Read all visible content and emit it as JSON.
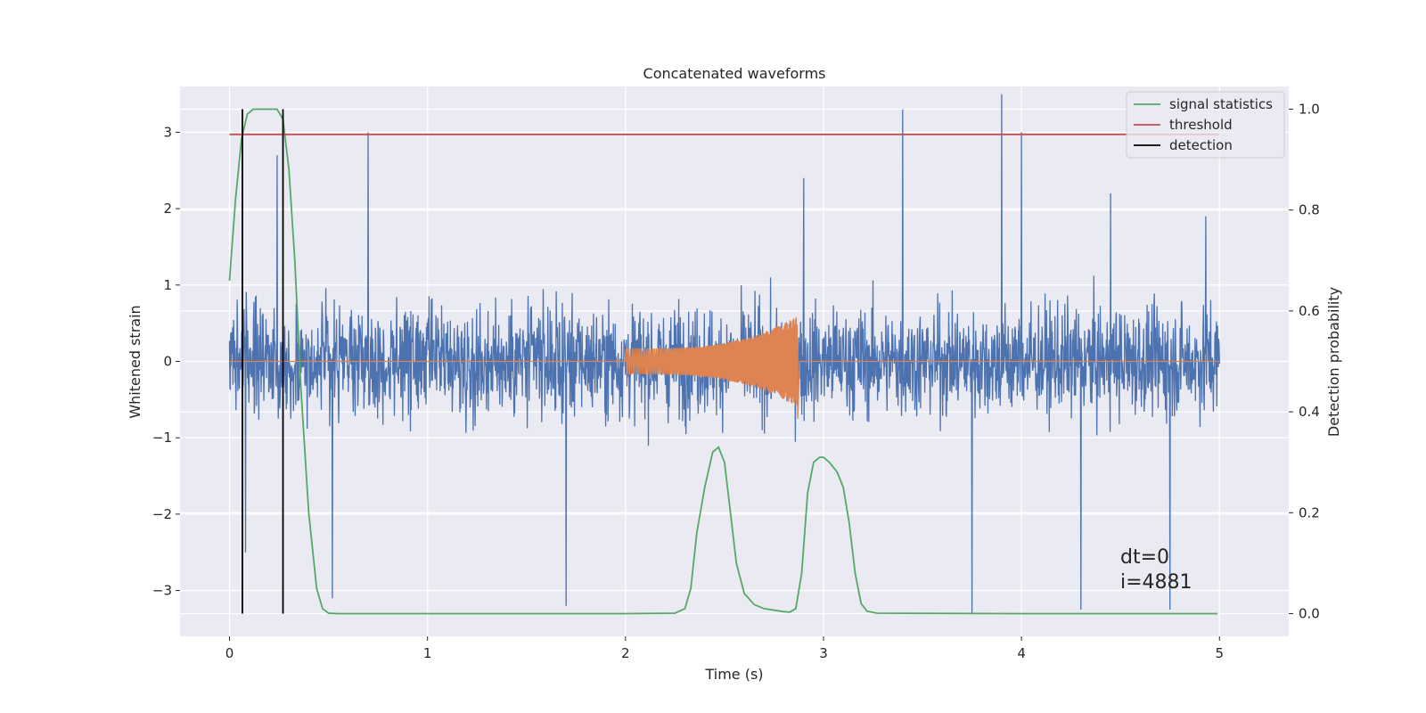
{
  "chart_data": {
    "type": "line",
    "title": "Concatenated waveforms",
    "xlabel": "Time (s)",
    "ylabel": "Whitened strain",
    "y2label": "Detection probability",
    "xlim": [
      -0.25,
      5.35
    ],
    "ylim": [
      -3.6,
      3.6
    ],
    "y2lim": [
      -0.045,
      1.045
    ],
    "xticks": [
      0,
      1,
      2,
      3,
      4,
      5
    ],
    "yticks": [
      -3,
      -2,
      -1,
      0,
      1,
      2,
      3
    ],
    "y2ticks": [
      0.0,
      0.2,
      0.4,
      0.6,
      0.8,
      1.0
    ],
    "xtick_labels": [
      "0",
      "1",
      "2",
      "3",
      "4",
      "5"
    ],
    "ytick_labels": [
      "−3",
      "−2",
      "−1",
      "0",
      "1",
      "2",
      "3"
    ],
    "y2tick_labels": [
      "0.0",
      "0.2",
      "0.4",
      "0.6",
      "0.8",
      "1.0"
    ],
    "grid": true,
    "legend_position": "top-right",
    "legend": [
      {
        "label": "signal statistics",
        "color": "#55a868"
      },
      {
        "label": "threshold",
        "color": "#c44e52"
      },
      {
        "label": "detection",
        "color": "#000000"
      }
    ],
    "annotations": [
      "dt=0",
      "i=4881"
    ],
    "series": [
      {
        "axis": "left",
        "color": "#4c72b0",
        "kind": "noise",
        "x_range": [
          0,
          5
        ],
        "typical_amplitude": 1.0,
        "peak_values": [
          [
            0.08,
            -2.5
          ],
          [
            0.24,
            2.7
          ],
          [
            0.7,
            3.0
          ],
          [
            1.7,
            -3.2
          ],
          [
            2.9,
            2.4
          ],
          [
            3.4,
            3.3
          ],
          [
            3.9,
            3.5
          ],
          [
            4.0,
            3.0
          ],
          [
            4.3,
            -3.25
          ],
          [
            4.45,
            2.2
          ],
          [
            3.75,
            -3.3
          ],
          [
            4.75,
            -3.25
          ],
          [
            0.52,
            -3.1
          ],
          [
            4.93,
            1.9
          ]
        ]
      },
      {
        "axis": "left",
        "color": "#dd8452",
        "kind": "chirp",
        "x_range": [
          0,
          5
        ],
        "chirp_start": 2.0,
        "chirp_end": 2.87,
        "start_amplitude": 0.17,
        "end_amplitude": 0.6,
        "end_min": -0.75
      },
      {
        "axis": "right",
        "color": "#55a868",
        "name": "signal statistics",
        "x": [
          0.0,
          0.03,
          0.06,
          0.09,
          0.12,
          0.15,
          0.2,
          0.24,
          0.27,
          0.3,
          0.33,
          0.36,
          0.4,
          0.44,
          0.47,
          0.5,
          0.55,
          1.0,
          2.0,
          2.25,
          2.3,
          2.33,
          2.36,
          2.4,
          2.44,
          2.47,
          2.5,
          2.53,
          2.56,
          2.6,
          2.65,
          2.7,
          2.8,
          2.83,
          2.86,
          2.89,
          2.92,
          2.95,
          2.98,
          3.0,
          3.03,
          3.07,
          3.1,
          3.13,
          3.16,
          3.19,
          3.22,
          3.27,
          4.0,
          4.99
        ],
        "y": [
          0.66,
          0.82,
          0.94,
          0.99,
          1.0,
          1.0,
          1.0,
          1.0,
          0.98,
          0.88,
          0.7,
          0.45,
          0.2,
          0.05,
          0.01,
          0.001,
          0.0,
          0.0,
          0.0,
          0.001,
          0.01,
          0.05,
          0.16,
          0.25,
          0.32,
          0.33,
          0.3,
          0.2,
          0.1,
          0.04,
          0.018,
          0.01,
          0.004,
          0.003,
          0.01,
          0.08,
          0.24,
          0.3,
          0.31,
          0.31,
          0.3,
          0.28,
          0.25,
          0.18,
          0.08,
          0.02,
          0.005,
          0.001,
          0.0,
          0.0
        ]
      },
      {
        "axis": "right",
        "color": "#c44e52",
        "name": "threshold",
        "x": [
          0.0,
          5.0
        ],
        "y": [
          0.95,
          0.95
        ]
      }
    ],
    "detections": [
      0.065,
      0.27
    ]
  }
}
